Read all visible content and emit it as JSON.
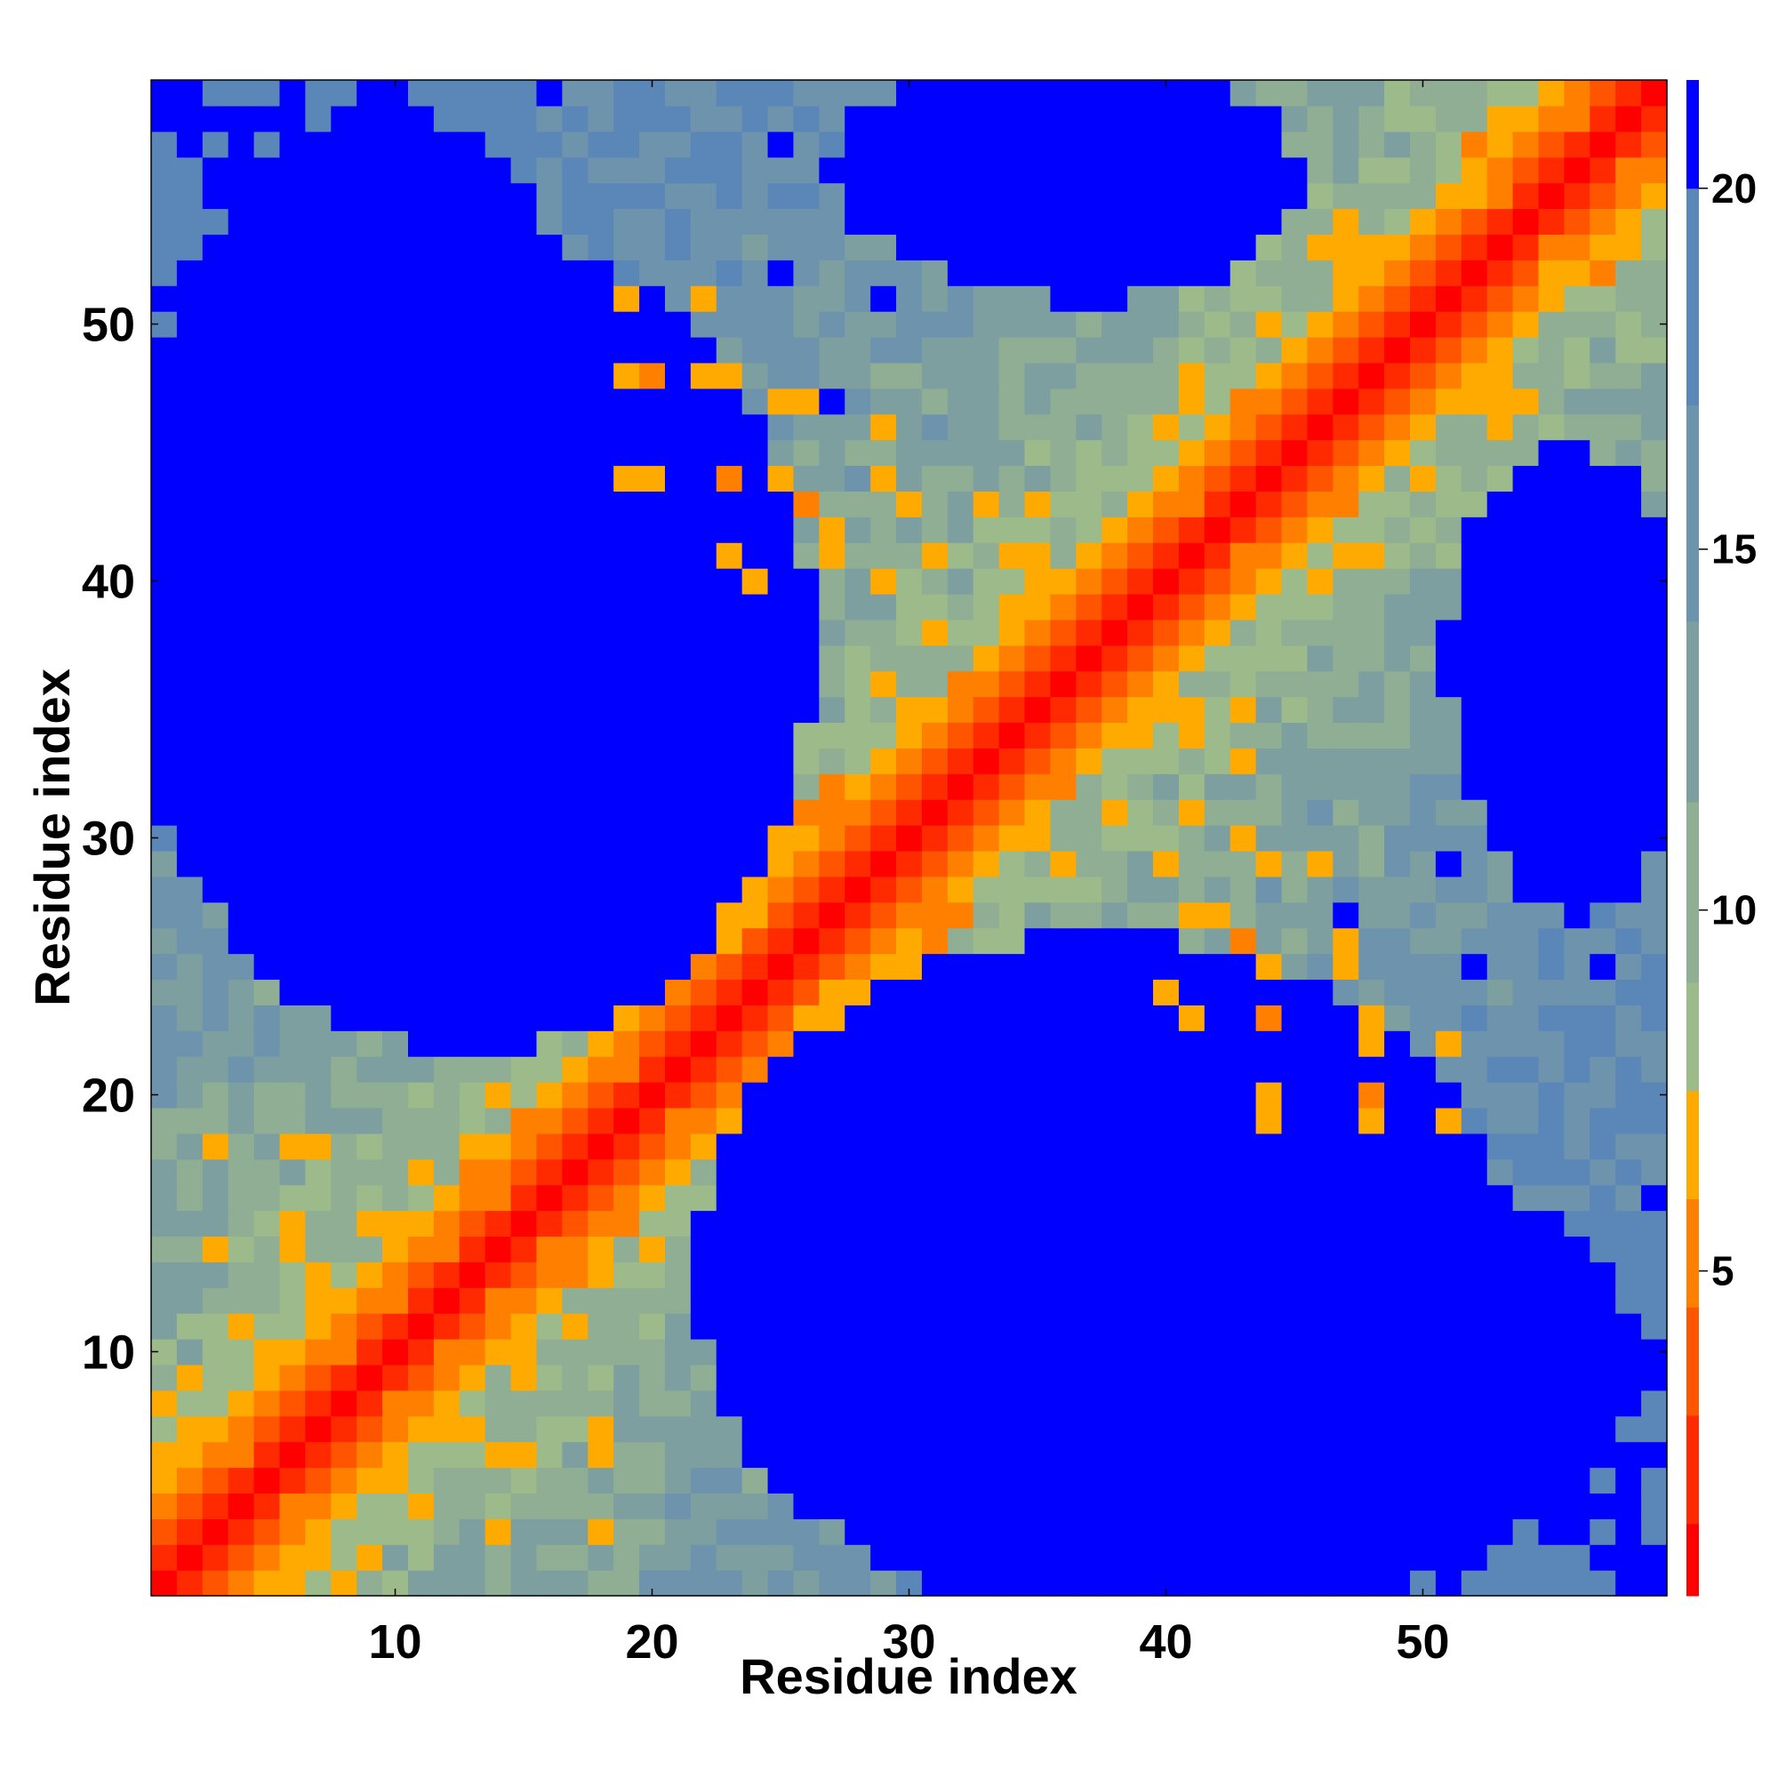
{
  "chart_data": {
    "type": "heatmap",
    "title": "",
    "xlabel": "Residue index",
    "ylabel": "Residue index",
    "n": 59,
    "xlim": [
      0.5,
      59.5
    ],
    "ylim": [
      0.5,
      59.5
    ],
    "xticks": [
      10,
      20,
      30,
      40,
      50
    ],
    "yticks": [
      10,
      20,
      30,
      40,
      50
    ],
    "colorbar": {
      "ticks": [
        5,
        10,
        15,
        20
      ],
      "range": [
        0.5,
        21.5
      ],
      "colors": [
        "#ff0000",
        "#ff2a00",
        "#ff5500",
        "#ff8000",
        "#ffaa00",
        "#9dba8b",
        "#8fae93",
        "#7d9fa0",
        "#6e93ad",
        "#5b86b8",
        "#0000ff"
      ],
      "thresholds": [
        1.5,
        3.0,
        4.5,
        6.0,
        7.5,
        9.0,
        11.5,
        14.0,
        17.0,
        20.0
      ]
    },
    "values_description": "Symmetric residue-residue distance map; values increase away from the diagonal, with distant blocks (saturated blue, >20) between the two halves of the chain and contact islands near residues 25-45.",
    "diagonal_band": [
      [
        0,
        0.5
      ],
      [
        1,
        2.5
      ],
      [
        2,
        4.0
      ],
      [
        3,
        5.5
      ],
      [
        4,
        6.5
      ],
      [
        5,
        7.5
      ],
      [
        6,
        8.5
      ],
      [
        8,
        9.5
      ],
      [
        10,
        10.5
      ],
      [
        13,
        11.5
      ],
      [
        17,
        12.5
      ],
      [
        22,
        14.0
      ],
      [
        28,
        15.5
      ],
      [
        35,
        17.0
      ],
      [
        45,
        18.5
      ],
      [
        58,
        21.0
      ]
    ],
    "far_regions": [
      {
        "x": [
          1,
          25
        ],
        "y": [
          23,
          52
        ],
        "value": 21
      },
      {
        "x": [
          25,
          57
        ],
        "y": [
          1,
          18
        ],
        "value": 21
      },
      {
        "x": [
          30,
          44
        ],
        "y": [
          52,
          59
        ],
        "value": 21
      },
      {
        "x": [
          53,
          59
        ],
        "y": [
          28,
          44
        ],
        "value": 21
      }
    ],
    "contacts": [
      {
        "i": 19,
        "j": 51,
        "value": 6.5
      },
      {
        "i": 22,
        "j": 51,
        "value": 6.5
      },
      {
        "i": 20,
        "j": 48,
        "value": 5.5
      },
      {
        "i": 23,
        "j": 48,
        "value": 6
      },
      {
        "i": 26,
        "j": 47,
        "value": 7
      },
      {
        "i": 29,
        "j": 46,
        "value": 7
      },
      {
        "i": 19,
        "j": 44,
        "value": 7
      },
      {
        "i": 23,
        "j": 44,
        "value": 6
      },
      {
        "i": 26,
        "j": 43,
        "value": 5.5
      },
      {
        "i": 30,
        "j": 43,
        "value": 6
      },
      {
        "i": 24,
        "j": 40,
        "value": 7
      },
      {
        "i": 27,
        "j": 41,
        "value": 7
      },
      {
        "i": 29,
        "j": 40,
        "value": 7
      },
      {
        "i": 31,
        "j": 38,
        "value": 7
      },
      {
        "i": 34,
        "j": 38,
        "value": 7
      },
      {
        "i": 43,
        "j": 33,
        "value": 7
      },
      {
        "i": 41,
        "j": 31,
        "value": 6
      },
      {
        "i": 44,
        "j": 29,
        "value": 6
      },
      {
        "i": 46,
        "j": 29,
        "value": 7
      },
      {
        "i": 42,
        "j": 27,
        "value": 7
      },
      {
        "i": 44,
        "j": 25,
        "value": 7
      },
      {
        "i": 47,
        "j": 25,
        "value": 7
      },
      {
        "i": 41,
        "j": 23,
        "value": 7
      },
      {
        "i": 44,
        "j": 23,
        "value": 5.5
      },
      {
        "i": 48,
        "j": 22,
        "value": 6
      },
      {
        "i": 44,
        "j": 20,
        "value": 7
      },
      {
        "i": 48,
        "j": 19,
        "value": 6
      },
      {
        "i": 51,
        "j": 19,
        "value": 7
      },
      {
        "i": 3,
        "j": 18,
        "value": 7
      },
      {
        "i": 7,
        "j": 18,
        "value": 7
      },
      {
        "i": 3,
        "j": 14,
        "value": 7
      },
      {
        "i": 6,
        "j": 15,
        "value": 6.5
      },
      {
        "i": 14,
        "j": 6,
        "value": 6
      },
      {
        "i": 15,
        "j": 6,
        "value": 7
      },
      {
        "i": 18,
        "j": 6,
        "value": 7
      },
      {
        "i": 14,
        "j": 3,
        "value": 6.5
      },
      {
        "i": 18,
        "j": 3,
        "value": 7
      }
    ]
  }
}
